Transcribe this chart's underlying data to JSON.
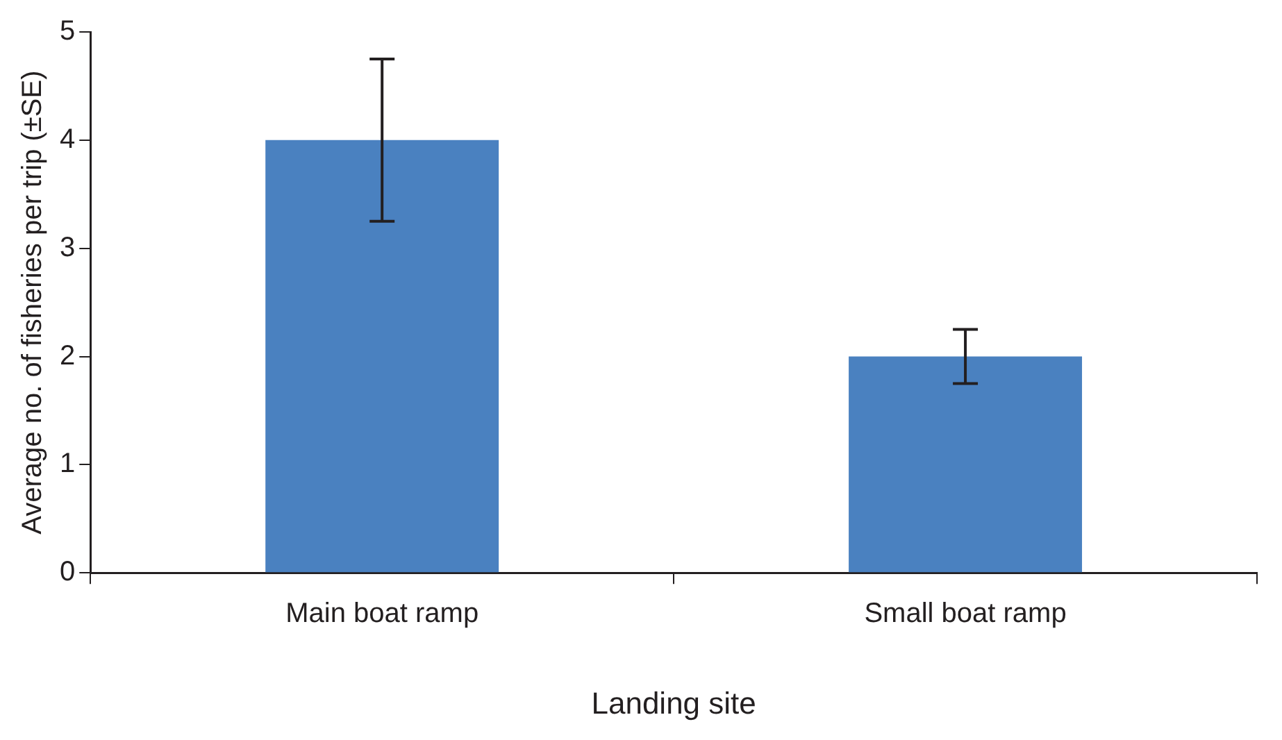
{
  "chart_data": {
    "type": "bar",
    "xlabel": "Landing site",
    "ylabel": "Average no. of fisheries per trip (±SE)",
    "categories": [
      "Main boat ramp",
      "Small boat ramp"
    ],
    "values": [
      4.0,
      2.0
    ],
    "errors": [
      0.75,
      0.25
    ],
    "color": "#4a81c0",
    "ylim": [
      0,
      5
    ],
    "yticks": [
      0,
      1,
      2,
      3,
      4,
      5
    ],
    "grid": false,
    "legend": false
  }
}
